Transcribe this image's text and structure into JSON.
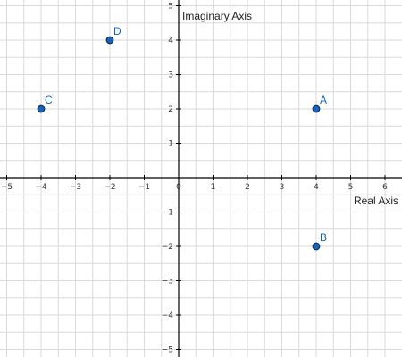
{
  "chart_data": {
    "type": "scatter",
    "title": "",
    "xlabel": "Real Axis",
    "ylabel": "Imaginary Axis",
    "xlim": [
      -5.2,
      6.5
    ],
    "ylim": [
      -5.1,
      5.2
    ],
    "x_ticks": [
      -5,
      -4,
      -3,
      -2,
      -1,
      0,
      1,
      2,
      3,
      4,
      5,
      6
    ],
    "y_ticks": [
      -5,
      -4,
      -3,
      -2,
      -1,
      1,
      2,
      3,
      4,
      5
    ],
    "grid": true,
    "series": [
      {
        "points": [
          {
            "label": "A",
            "x": 4,
            "y": 2
          },
          {
            "label": "B",
            "x": 4,
            "y": -2
          },
          {
            "label": "C",
            "x": -4,
            "y": 2
          },
          {
            "label": "D",
            "x": -2,
            "y": 4
          }
        ]
      }
    ],
    "colors": {
      "point": "#1565c0",
      "label": "#1565c0",
      "grid": "#d9d9d9",
      "axis": "#000000"
    }
  }
}
